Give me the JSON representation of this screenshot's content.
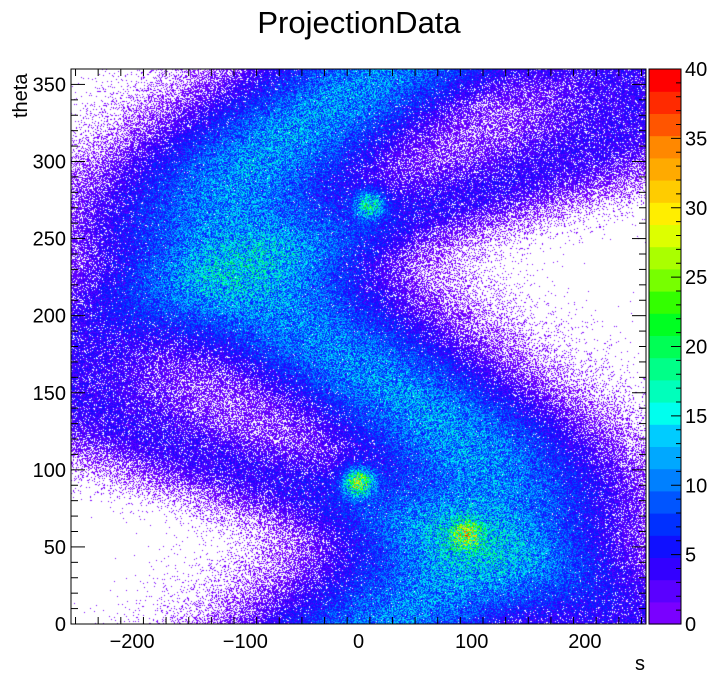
{
  "chart_data": {
    "type": "heatmap",
    "title": "ProjectionData",
    "xlabel": "s",
    "ylabel": "theta",
    "xlim": [
      -254,
      254
    ],
    "ylim": [
      0,
      360
    ],
    "zlim": [
      0,
      40
    ],
    "x_ticks": [
      -200,
      -100,
      0,
      100,
      200
    ],
    "x_tick_labels": [
      "−200",
      "−100",
      "0",
      "100",
      "200"
    ],
    "y_ticks": [
      0,
      50,
      100,
      150,
      200,
      250,
      300,
      350
    ],
    "y_tick_labels": [
      "0",
      "50",
      "100",
      "150",
      "200",
      "250",
      "300",
      "350"
    ],
    "z_ticks": [
      0,
      5,
      10,
      15,
      20,
      25,
      30,
      35,
      40
    ],
    "z_tick_labels": [
      "0",
      "5",
      "10",
      "15",
      "20",
      "25",
      "30",
      "35",
      "40"
    ],
    "palette": "rainbow",
    "palette_colors": [
      "#7a00ff",
      "#5a00ff",
      "#3300ff",
      "#1010ff",
      "#0030ff",
      "#0055ff",
      "#0080ff",
      "#00a8ff",
      "#00ccff",
      "#00ffee",
      "#00ffbb",
      "#00ff88",
      "#00ff55",
      "#00ff22",
      "#33ff00",
      "#77ff00",
      "#aaff00",
      "#ddff00",
      "#ffee00",
      "#ffcc00",
      "#ffaa00",
      "#ff8800",
      "#ff5500",
      "#ff2a00",
      "#ff0000"
    ],
    "grid": false,
    "legend": "colorbar-right",
    "bands": [
      {
        "amplitude": 95,
        "phase_deg": 0,
        "mean_counts": 6
      },
      {
        "amplitude": 150,
        "phase_deg": 20,
        "mean_counts": 5
      },
      {
        "amplitude": 250,
        "phase_deg": 105,
        "mean_counts": 4
      }
    ],
    "hotspots": [
      {
        "s": 0,
        "theta": 92,
        "counts": 18
      },
      {
        "s": 95,
        "theta": 58,
        "counts": 12
      },
      {
        "s": 10,
        "theta": 272,
        "counts": 12
      }
    ]
  }
}
